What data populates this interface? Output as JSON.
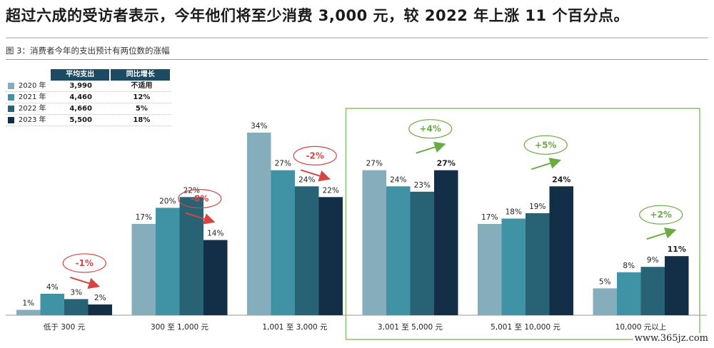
{
  "headline": "超过六成的受访者表示，今年他们将至少消费 3,000 元，较 2022 年上涨 11 个百分点。",
  "figure_caption": "图 3：消费者今年的支出预计有两位数的涨幅",
  "watermark": "www.365jz.com",
  "legend_table": {
    "headers": [
      "平均支出",
      "同比增长"
    ],
    "rows": [
      {
        "year": "2020 年",
        "avg": "3,990",
        "yoy": "不适用",
        "color": "#86adbb"
      },
      {
        "year": "2021 年",
        "avg": "4,460",
        "yoy": "12%",
        "color": "#3f93a4"
      },
      {
        "year": "2022 年",
        "avg": "4,660",
        "yoy": "5%",
        "color": "#286275"
      },
      {
        "year": "2023 年",
        "avg": "5,500",
        "yoy": "18%",
        "color": "#132f47"
      }
    ]
  },
  "chart_data": {
    "type": "bar",
    "categories": [
      "低于 300 元",
      "300 至 1,000 元",
      "1,001 至 3,000 元",
      "3,001 至 5,000 元",
      "5,001 至 10,000 元",
      "10,000 元以上"
    ],
    "series": [
      {
        "name": "2020 年",
        "values": [
          1,
          17,
          34,
          27,
          17,
          5
        ],
        "color": "#86adbb"
      },
      {
        "name": "2021 年",
        "values": [
          4,
          20,
          27,
          24,
          18,
          8
        ],
        "color": "#3f93a4"
      },
      {
        "name": "2022 年",
        "values": [
          3,
          22,
          24,
          23,
          19,
          9
        ],
        "color": "#286275"
      },
      {
        "name": "2023 年",
        "values": [
          2,
          14,
          22,
          27,
          24,
          11
        ],
        "color": "#132f47"
      }
    ],
    "value_suffix": "%",
    "changes": [
      {
        "label": "-1%",
        "direction": "down",
        "color": "#d64541"
      },
      {
        "label": "-8%",
        "direction": "down",
        "color": "#d64541"
      },
      {
        "label": "-2%",
        "direction": "down",
        "color": "#d64541"
      },
      {
        "label": "+4%",
        "direction": "up",
        "color": "#6aab45"
      },
      {
        "label": "+5%",
        "direction": "up",
        "color": "#6aab45"
      },
      {
        "label": "+2%",
        "direction": "up",
        "color": "#6aab45"
      }
    ],
    "highlight_categories": [
      3,
      4,
      5
    ],
    "highlight_color": "#8cc06a",
    "ylim": [
      0,
      34
    ],
    "legend": "top-left table",
    "grid": false
  }
}
